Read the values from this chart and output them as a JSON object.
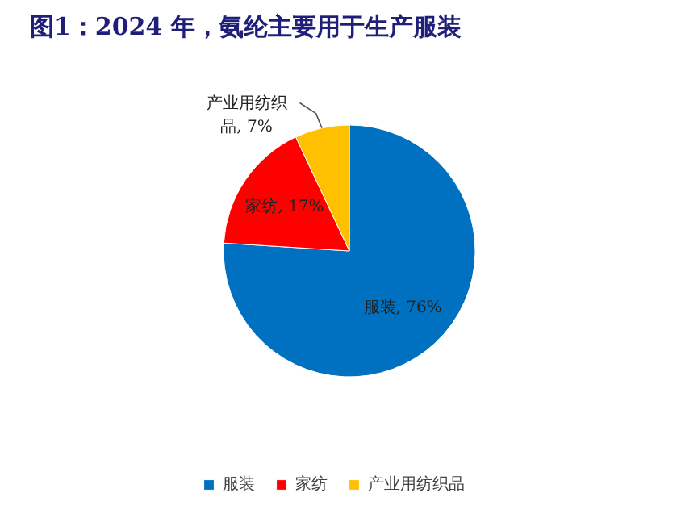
{
  "chart_data": {
    "type": "pie",
    "title": "图1：2024 年，氨纶主要用于生产服装",
    "categories": [
      "服装",
      "家纺",
      "产业用纺织品"
    ],
    "values": [
      76,
      17,
      7
    ],
    "colors": [
      "#0070c0",
      "#ff0000",
      "#ffc000"
    ],
    "value_labels": [
      "服装, 76%",
      "家纺, 17%",
      "产业用纺织品, 7%"
    ],
    "legend": "bottom"
  }
}
